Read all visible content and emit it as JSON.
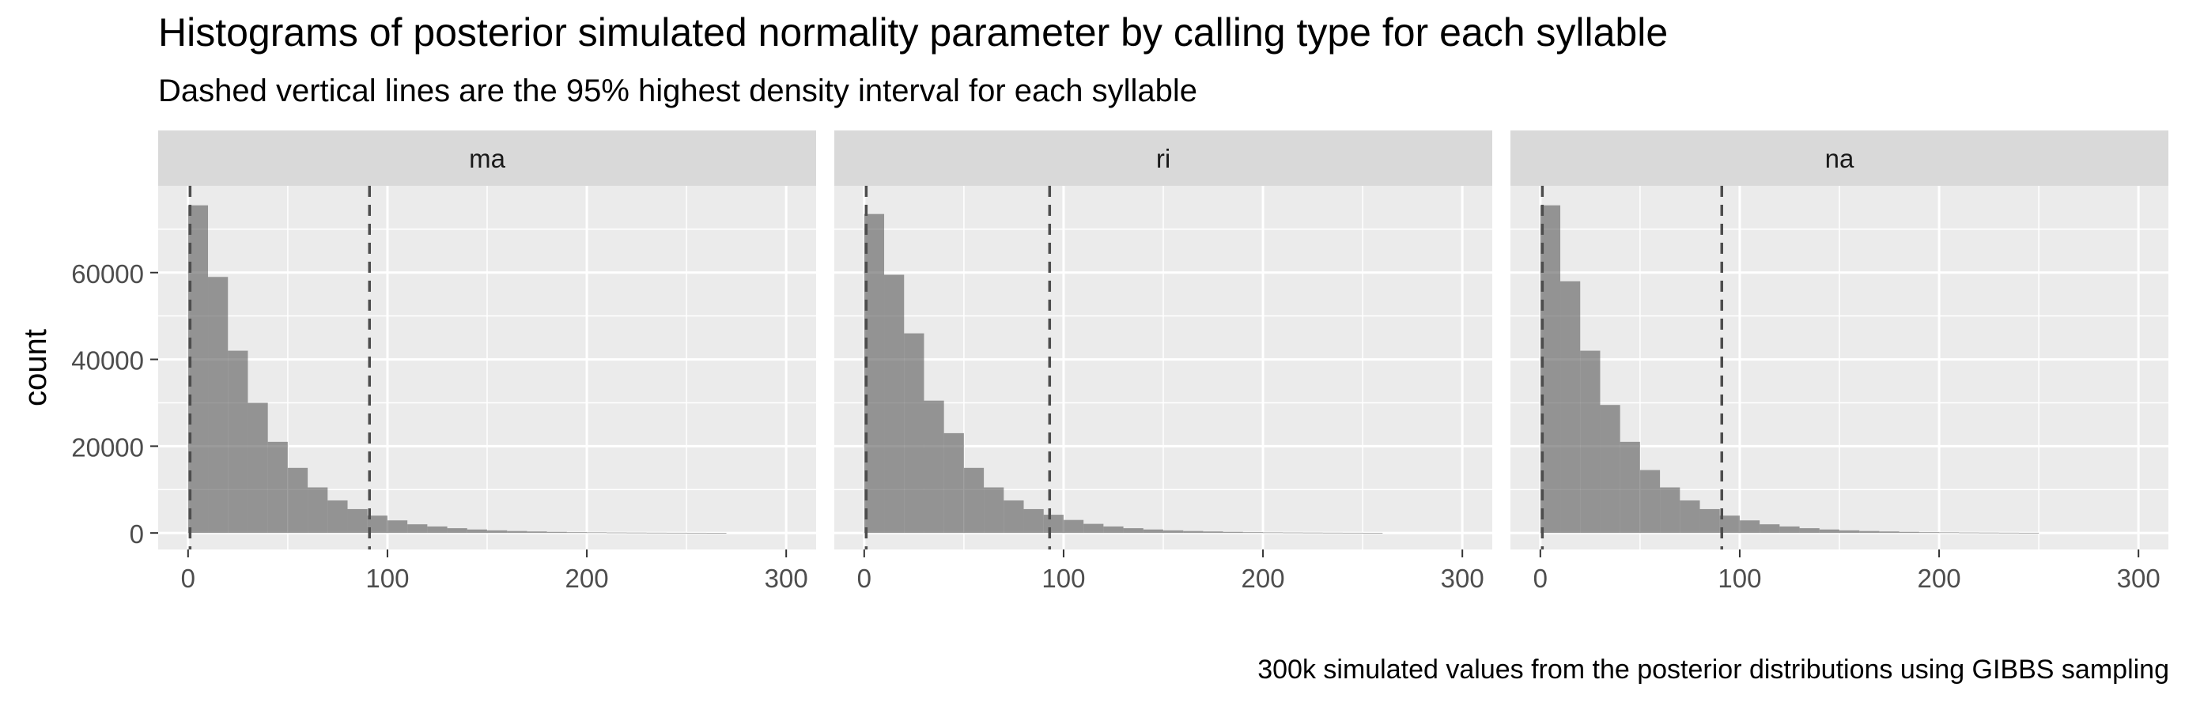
{
  "chart_data": {
    "type": "bar",
    "title": "Histograms of posterior simulated normality parameter by calling type for each syllable",
    "subtitle": "Dashed vertical lines are the 95% highest density interval for each syllable",
    "caption": "300k simulated values from the posterior distributions using GIBBS sampling",
    "xlabel": "",
    "ylabel": "count",
    "xlim": [
      -15,
      315
    ],
    "ylim": [
      -3800,
      80000
    ],
    "x_ticks": [
      0,
      100,
      200,
      300
    ],
    "x_tick_labels": [
      "0",
      "100",
      "200",
      "300"
    ],
    "y_ticks": [
      0,
      20000,
      40000,
      60000
    ],
    "y_tick_labels": [
      "0",
      "20000",
      "40000",
      "60000"
    ],
    "bin_width": 10,
    "grid": true,
    "bar_color": "#595959",
    "bar_opacity": 0.6,
    "panel_background": "#ebebeb",
    "strip_background": "#d9d9d9",
    "grid_color": "#ffffff",
    "hdi_line_color": "#4d4d4d",
    "panels": [
      {
        "label": "ma",
        "bins_x": [
          5,
          15,
          25,
          35,
          45,
          55,
          65,
          75,
          85,
          95,
          105,
          115,
          125,
          135,
          145,
          155,
          165,
          175,
          185,
          195,
          205,
          215,
          225,
          235,
          245,
          255,
          265
        ],
        "counts": [
          75500,
          59000,
          42000,
          30000,
          21000,
          15000,
          10500,
          7500,
          5500,
          4000,
          2900,
          2000,
          1500,
          1100,
          800,
          600,
          450,
          350,
          250,
          180,
          140,
          100,
          80,
          60,
          45,
          35,
          25
        ],
        "hdi": [
          1,
          91
        ]
      },
      {
        "label": "ri",
        "bins_x": [
          5,
          15,
          25,
          35,
          45,
          55,
          65,
          75,
          85,
          95,
          105,
          115,
          125,
          135,
          145,
          155,
          165,
          175,
          185,
          195,
          205,
          215,
          225,
          235,
          245,
          255
        ],
        "counts": [
          73500,
          59500,
          46000,
          30500,
          23000,
          15000,
          10500,
          7500,
          5500,
          4200,
          3000,
          2100,
          1500,
          1100,
          800,
          600,
          450,
          350,
          250,
          180,
          130,
          100,
          80,
          60,
          45,
          30
        ],
        "hdi": [
          1,
          93
        ]
      },
      {
        "label": "na",
        "bins_x": [
          5,
          15,
          25,
          35,
          45,
          55,
          65,
          75,
          85,
          95,
          105,
          115,
          125,
          135,
          145,
          155,
          165,
          175,
          185,
          195,
          205,
          215,
          225,
          235,
          245
        ],
        "counts": [
          75500,
          58000,
          42000,
          29500,
          21000,
          14500,
          10500,
          7500,
          5500,
          4000,
          2900,
          2000,
          1500,
          1100,
          800,
          600,
          450,
          350,
          250,
          180,
          140,
          100,
          80,
          60,
          40
        ],
        "hdi": [
          1,
          91
        ]
      }
    ]
  }
}
